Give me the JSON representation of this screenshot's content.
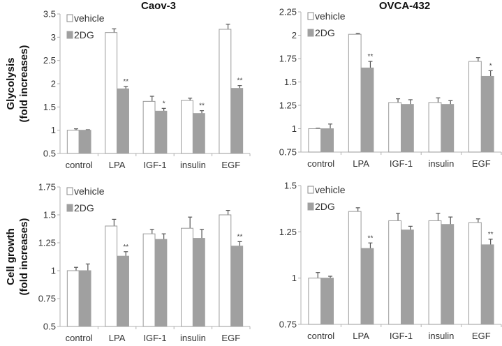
{
  "chart_data": [
    {
      "type": "bar",
      "title": "Caov-3",
      "ylabel": [
        "Glycolysis",
        "(fold increases)"
      ],
      "categories": [
        "control",
        "LPA",
        "IGF-1",
        "insulin",
        "EGF"
      ],
      "ylim": [
        0.5,
        3.5
      ],
      "yticks": [
        "0.5",
        "1",
        "1.5",
        "2",
        "2.5",
        "3",
        "3.5"
      ],
      "legend": "top-left",
      "series": [
        {
          "name": "vehicle",
          "values": [
            1.0,
            3.1,
            1.62,
            1.64,
            3.17
          ],
          "errors": [
            0.03,
            0.08,
            0.11,
            0.05,
            0.11
          ]
        },
        {
          "name": "2DG",
          "values": [
            1.0,
            1.89,
            1.41,
            1.36,
            1.9
          ],
          "errors": [
            0.01,
            0.05,
            0.06,
            0.06,
            0.06
          ]
        }
      ],
      "significance": [
        "",
        "**",
        "*",
        "**",
        "**"
      ]
    },
    {
      "type": "bar",
      "title": "OVCA-432",
      "ylabel": [],
      "categories": [
        "control",
        "LPA",
        "IGF-1",
        "insulin",
        "EGF"
      ],
      "ylim": [
        0.75,
        2.25
      ],
      "yticks": [
        "0.75",
        "1",
        "1.25",
        "1.5",
        "1.75",
        "2",
        "2.25"
      ],
      "legend": "top-left",
      "series": [
        {
          "name": "vehicle",
          "values": [
            1.0,
            2.01,
            1.28,
            1.28,
            1.72
          ],
          "errors": [
            0.005,
            0.01,
            0.04,
            0.05,
            0.04
          ]
        },
        {
          "name": "2DG",
          "values": [
            1.0,
            1.65,
            1.26,
            1.26,
            1.56
          ],
          "errors": [
            0.05,
            0.07,
            0.05,
            0.04,
            0.06
          ]
        }
      ],
      "significance": [
        "",
        "**",
        "",
        "",
        "*"
      ]
    },
    {
      "type": "bar",
      "title": "",
      "ylabel": [
        "Cell growth",
        "(fold increases)"
      ],
      "categories": [
        "control",
        "LPA",
        "IGF-1",
        "insulin",
        "EGF"
      ],
      "ylim": [
        0.5,
        1.75
      ],
      "yticks": [
        "0.5",
        "0.75",
        "1",
        "1.25",
        "1.5",
        "1.75"
      ],
      "legend": "top-left",
      "series": [
        {
          "name": "vehicle",
          "values": [
            1.0,
            1.4,
            1.33,
            1.38,
            1.5
          ],
          "errors": [
            0.03,
            0.06,
            0.04,
            0.1,
            0.04
          ]
        },
        {
          "name": "2DG",
          "values": [
            1.0,
            1.13,
            1.28,
            1.29,
            1.22
          ],
          "errors": [
            0.06,
            0.04,
            0.05,
            0.08,
            0.04
          ]
        }
      ],
      "significance": [
        "",
        "**",
        "",
        "",
        "**"
      ]
    },
    {
      "type": "bar",
      "title": "",
      "ylabel": [],
      "categories": [
        "control",
        "LPA",
        "IGF-1",
        "insulin",
        "EGF"
      ],
      "ylim": [
        0.75,
        1.5
      ],
      "yticks": [
        "0.75",
        "1",
        "1.25",
        "1.5"
      ],
      "legend": "top-left",
      "series": [
        {
          "name": "vehicle",
          "values": [
            1.0,
            1.36,
            1.31,
            1.31,
            1.3
          ],
          "errors": [
            0.03,
            0.02,
            0.04,
            0.04,
            0.02
          ]
        },
        {
          "name": "2DG",
          "values": [
            1.0,
            1.16,
            1.26,
            1.29,
            1.18
          ],
          "errors": [
            0.01,
            0.03,
            0.02,
            0.04,
            0.03
          ]
        }
      ],
      "significance": [
        "",
        "**",
        "",
        "",
        "**"
      ]
    }
  ]
}
